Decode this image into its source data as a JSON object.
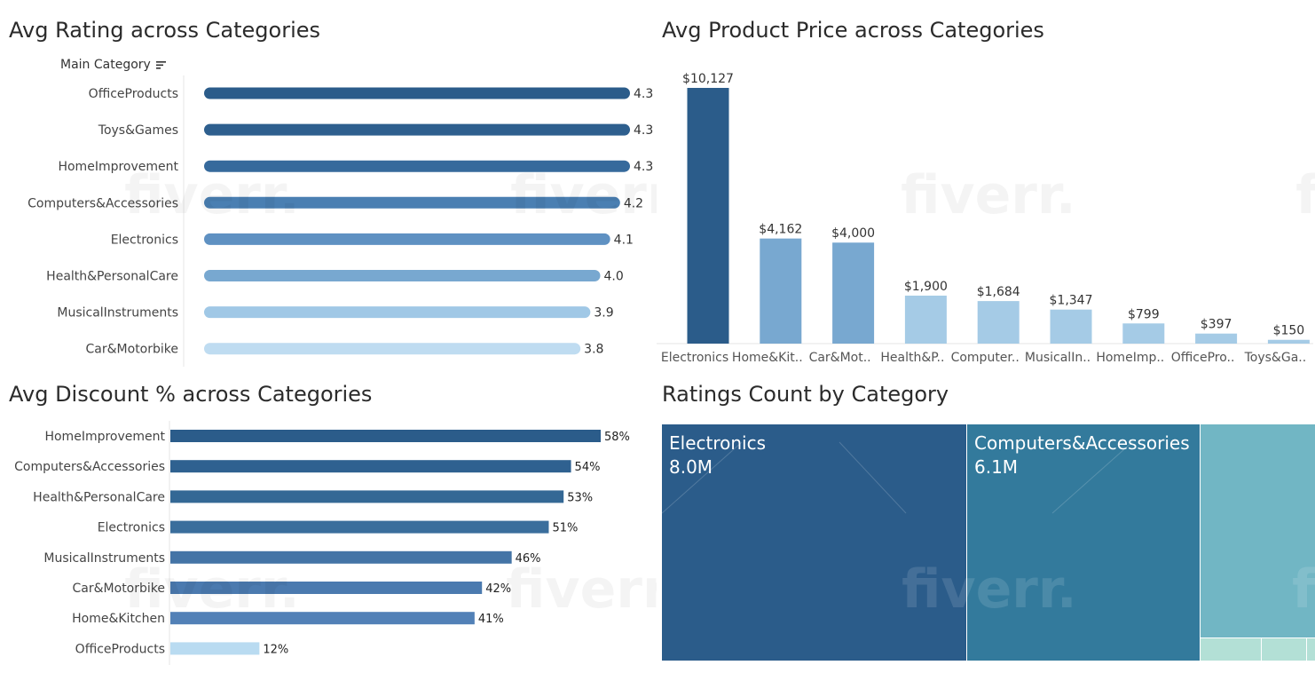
{
  "colors": {
    "dark_blue": "#2b5c8a",
    "mid_blue": "#4f7fb1",
    "light_blue": "#78a8d0",
    "pale_blue": "#a5cbe6",
    "lightest_blue": "#bfdcf1",
    "treemap_teal": "#337a9c",
    "treemap_light_teal": "#71b6c4",
    "treemap_mint": "#b3e0d6"
  },
  "watermark": "fiverr.",
  "panels": {
    "rating": {
      "title": "Avg Rating across Categories",
      "axis_header": "Main Category",
      "sort_icon": "sort-descending-icon"
    },
    "price": {
      "title": "Avg Product Price across Categories"
    },
    "discount": {
      "title": "Avg Discount % across Categories"
    },
    "treemap": {
      "title": "Ratings Count by Category"
    }
  },
  "chart_data": [
    {
      "type": "bar",
      "orientation": "horizontal",
      "title": "Avg Rating across Categories",
      "xlabel": "",
      "ylabel": "Main Category",
      "categories": [
        "OfficeProducts",
        "Toys&Games",
        "HomeImprovement",
        "Computers&Accessories",
        "Electronics",
        "Health&PersonalCare",
        "MusicalInstruments",
        "Car&Motorbike"
      ],
      "values": [
        4.3,
        4.3,
        4.3,
        4.2,
        4.1,
        4.0,
        3.9,
        3.8
      ],
      "labels": [
        "4.3",
        "4.3",
        "4.3",
        "4.2",
        "4.1",
        "4.0",
        "3.9",
        "3.8"
      ],
      "colors": [
        "#2b5c8a",
        "#2e5f8e",
        "#366a9c",
        "#4a7fb2",
        "#5f91c2",
        "#78a8d0",
        "#a0c8e6",
        "#bfdcf1"
      ],
      "xlim": [
        0,
        4.3
      ],
      "grid": false
    },
    {
      "type": "bar",
      "orientation": "vertical",
      "title": "Avg Product Price across Categories",
      "xlabel": "",
      "ylabel": "",
      "categories": [
        "Electronics",
        "Home&Kit..",
        "Car&Mot..",
        "Health&P..",
        "Computer..",
        "MusicalIn..",
        "HomeImp..",
        "OfficePro..",
        "Toys&Ga.."
      ],
      "values": [
        10127,
        4162,
        4000,
        1900,
        1684,
        1347,
        799,
        397,
        150
      ],
      "labels": [
        "$10,127",
        "$4,162",
        "$4,000",
        "$1,900",
        "$1,684",
        "$1,347",
        "$799",
        "$397",
        "$150"
      ],
      "colors": [
        "#2b5c8a",
        "#78a8d0",
        "#78a8d0",
        "#a5cbe6",
        "#a5cbe6",
        "#a5cbe6",
        "#a5cbe6",
        "#a5cbe6",
        "#a5cbe6"
      ],
      "ylim": [
        0,
        10127
      ],
      "grid": false
    },
    {
      "type": "bar",
      "orientation": "horizontal",
      "title": "Avg Discount % across Categories",
      "xlabel": "",
      "ylabel": "",
      "categories": [
        "HomeImprovement",
        "Computers&Accessories",
        "Health&PersonalCare",
        "Electronics",
        "MusicalInstruments",
        "Car&Motorbike",
        "Home&Kitchen",
        "OfficeProducts"
      ],
      "values": [
        58,
        54,
        53,
        51,
        46,
        42,
        41,
        12
      ],
      "labels": [
        "58%",
        "54%",
        "53%",
        "51%",
        "46%",
        "42%",
        "41%",
        "12%"
      ],
      "colors": [
        "#2b5c8a",
        "#2f6190",
        "#346895",
        "#3a6e9c",
        "#4474a6",
        "#4b7aaf",
        "#5281b7",
        "#b9dbf1"
      ],
      "xlim": [
        0,
        58
      ],
      "grid": false
    },
    {
      "type": "treemap",
      "title": "Ratings Count by Category",
      "series": [
        {
          "name": "Electronics",
          "value": 8.0,
          "label": "8.0M"
        },
        {
          "name": "Computers&Accessories",
          "value": 6.1,
          "label": "6.1M"
        }
      ]
    }
  ],
  "treemap_tiles": [
    {
      "name": "Electronics",
      "value_label": "8.0M"
    },
    {
      "name": "Computers&Accessories",
      "value_label": "6.1M"
    }
  ]
}
